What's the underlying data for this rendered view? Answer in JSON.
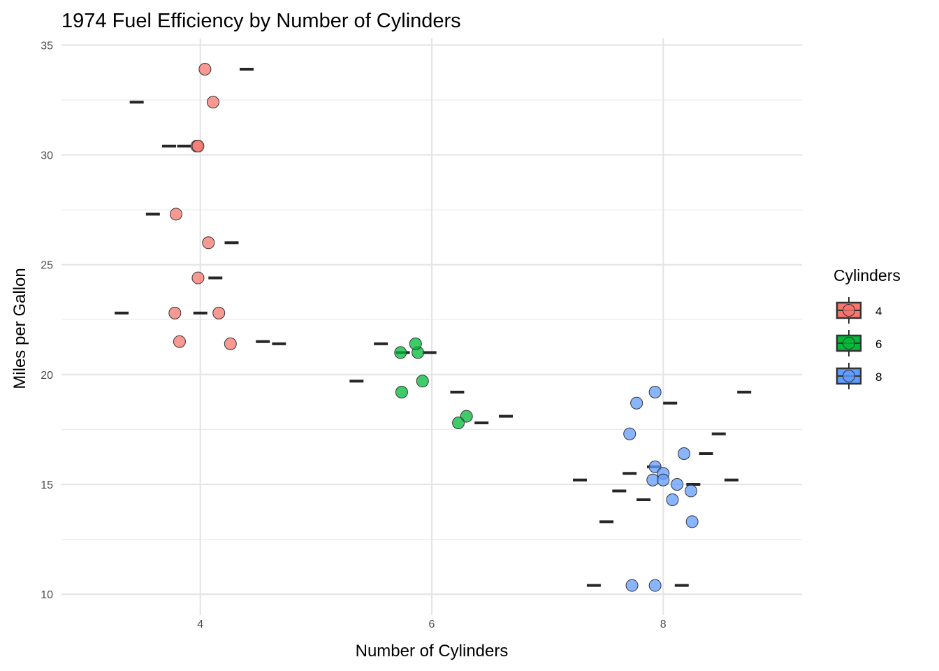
{
  "chart_data": {
    "type": "scatter",
    "title": "1974 Fuel Efficiency by Number of Cylinders",
    "xlabel": "Number of Cylinders",
    "ylabel": "Miles per Gallon",
    "xlim": [
      2.8,
      9.2
    ],
    "ylim": [
      9.05,
      35.3
    ],
    "xticks": [
      4,
      6,
      8
    ],
    "yticks": [
      10,
      15,
      20,
      25,
      30,
      35
    ],
    "grid": true,
    "legend": {
      "title": "Cylinders",
      "placement": "right",
      "entries": [
        "4",
        "6",
        "8"
      ]
    },
    "series": [
      {
        "name": "4",
        "color": "#F8766D",
        "points": [
          [
            4.04,
            33.9
          ],
          [
            4.11,
            32.4
          ],
          [
            3.97,
            30.4
          ],
          [
            3.98,
            30.4
          ],
          [
            3.79,
            27.3
          ],
          [
            4.07,
            26.0
          ],
          [
            3.98,
            24.4
          ],
          [
            3.78,
            22.8
          ],
          [
            4.16,
            22.8
          ],
          [
            3.82,
            21.5
          ],
          [
            4.26,
            21.4
          ]
        ],
        "dashes": [
          [
            4.4,
            33.9
          ],
          [
            3.45,
            32.4
          ],
          [
            3.73,
            30.4
          ],
          [
            3.86,
            30.4
          ],
          [
            3.59,
            27.3
          ],
          [
            4.27,
            26.0
          ],
          [
            4.13,
            24.4
          ],
          [
            3.32,
            22.8
          ],
          [
            4.0,
            22.8
          ],
          [
            4.54,
            21.5
          ],
          [
            4.68,
            21.4
          ]
        ]
      },
      {
        "name": "6",
        "color": "#00BA38",
        "points": [
          [
            5.73,
            21.0
          ],
          [
            5.88,
            21.0
          ],
          [
            5.86,
            21.4
          ],
          [
            5.74,
            19.2
          ],
          [
            5.92,
            19.7
          ],
          [
            6.3,
            18.1
          ],
          [
            6.23,
            17.8
          ]
        ],
        "dashes": [
          [
            5.56,
            21.4
          ],
          [
            5.35,
            19.7
          ],
          [
            5.75,
            21.0
          ],
          [
            5.98,
            21.0
          ],
          [
            6.22,
            19.2
          ],
          [
            6.43,
            17.8
          ],
          [
            6.64,
            18.1
          ]
        ]
      },
      {
        "name": "8",
        "color": "#619CFF",
        "points": [
          [
            7.93,
            19.2
          ],
          [
            7.77,
            18.7
          ],
          [
            7.71,
            17.3
          ],
          [
            8.18,
            16.4
          ],
          [
            7.93,
            15.8
          ],
          [
            8.0,
            15.5
          ],
          [
            7.91,
            15.2
          ],
          [
            8.0,
            15.2
          ],
          [
            8.12,
            15.0
          ],
          [
            8.24,
            14.7
          ],
          [
            8.08,
            14.3
          ],
          [
            8.25,
            13.3
          ],
          [
            7.73,
            10.4
          ],
          [
            7.93,
            10.4
          ]
        ],
        "dashes": [
          [
            8.7,
            19.2
          ],
          [
            8.06,
            18.7
          ],
          [
            8.48,
            17.3
          ],
          [
            8.37,
            16.4
          ],
          [
            7.92,
            15.8
          ],
          [
            7.71,
            15.5
          ],
          [
            7.28,
            15.2
          ],
          [
            8.59,
            15.2
          ],
          [
            8.26,
            15.0
          ],
          [
            7.62,
            14.7
          ],
          [
            7.83,
            14.3
          ],
          [
            7.51,
            13.3
          ],
          [
            7.4,
            10.4
          ],
          [
            8.16,
            10.4
          ]
        ]
      }
    ]
  }
}
